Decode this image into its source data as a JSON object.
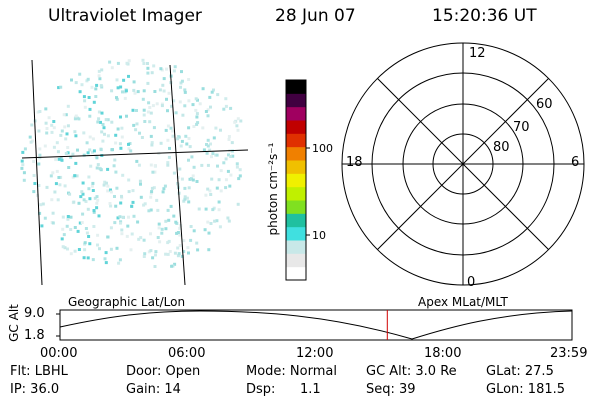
{
  "header": {
    "instrument": "Ultraviolet Imager",
    "date": "28 Jun 07",
    "time": "15:20:36 UT"
  },
  "colorbar": {
    "unit_label": "photon cm⁻²s⁻¹",
    "ticks": [
      "100",
      "10"
    ],
    "colors": [
      "#ffffff",
      "#e8e8e8",
      "#c8e8e8",
      "#40e0e0",
      "#20c0a0",
      "#80e020",
      "#c0f000",
      "#f0f000",
      "#f0c000",
      "#f08000",
      "#e03000",
      "#c00000",
      "#a00060",
      "#400040",
      "#000000"
    ]
  },
  "polar_plot": {
    "lat_labels": [
      "80",
      "70",
      "60"
    ],
    "mlt_labels": [
      "12",
      "18",
      "6",
      "0"
    ]
  },
  "timeline": {
    "ylabel": "GC Alt",
    "y_ticks": [
      "9.0",
      "1.8"
    ],
    "left_caption": "Geographic Lat/Lon",
    "right_caption": "Apex MLat/MLT",
    "x_ticks": [
      "00:00",
      "06:00",
      "12:00",
      "18:00",
      "23:59"
    ],
    "current_time_hours": 15.34,
    "marker_color": "#d00000"
  },
  "footer": {
    "filter": "Flt: LBHL",
    "ip": "IP: 36.0",
    "door": "Door: Open",
    "gain": "Gain: 14",
    "mode": "Mode: Normal",
    "dsp_label": "Dsp:",
    "dsp_value": "1.1",
    "gc_alt": "GC Alt: 3.0 Re",
    "seq": "Seq: 39",
    "glat": "GLat:  27.5",
    "glon": "GLon: 181.5"
  }
}
